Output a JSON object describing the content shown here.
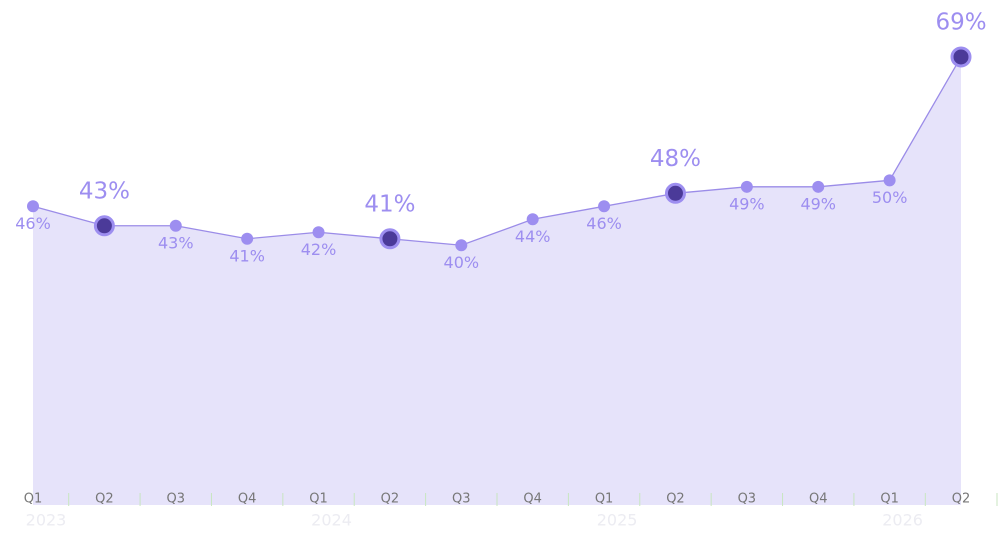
{
  "chart_data": {
    "type": "area",
    "categories": [
      "Q1",
      "Q2",
      "Q3",
      "Q4",
      "Q1",
      "Q2",
      "Q3",
      "Q4",
      "Q1",
      "Q2",
      "Q3",
      "Q4",
      "Q1",
      "Q2"
    ],
    "years": [
      "2023",
      "2024",
      "2025",
      "2026"
    ],
    "values": [
      46,
      43,
      43,
      41,
      42,
      41,
      40,
      44,
      46,
      48,
      49,
      49,
      50,
      69
    ],
    "value_labels": [
      "46%",
      "43%",
      "43%",
      "41%",
      "42%",
      "41%",
      "40%",
      "44%",
      "46%",
      "48%",
      "49%",
      "49%",
      "50%",
      "69%"
    ],
    "highlight": [
      1,
      5,
      9,
      13
    ],
    "color": "#9b8ce8",
    "ylim": [
      0,
      77
    ]
  }
}
